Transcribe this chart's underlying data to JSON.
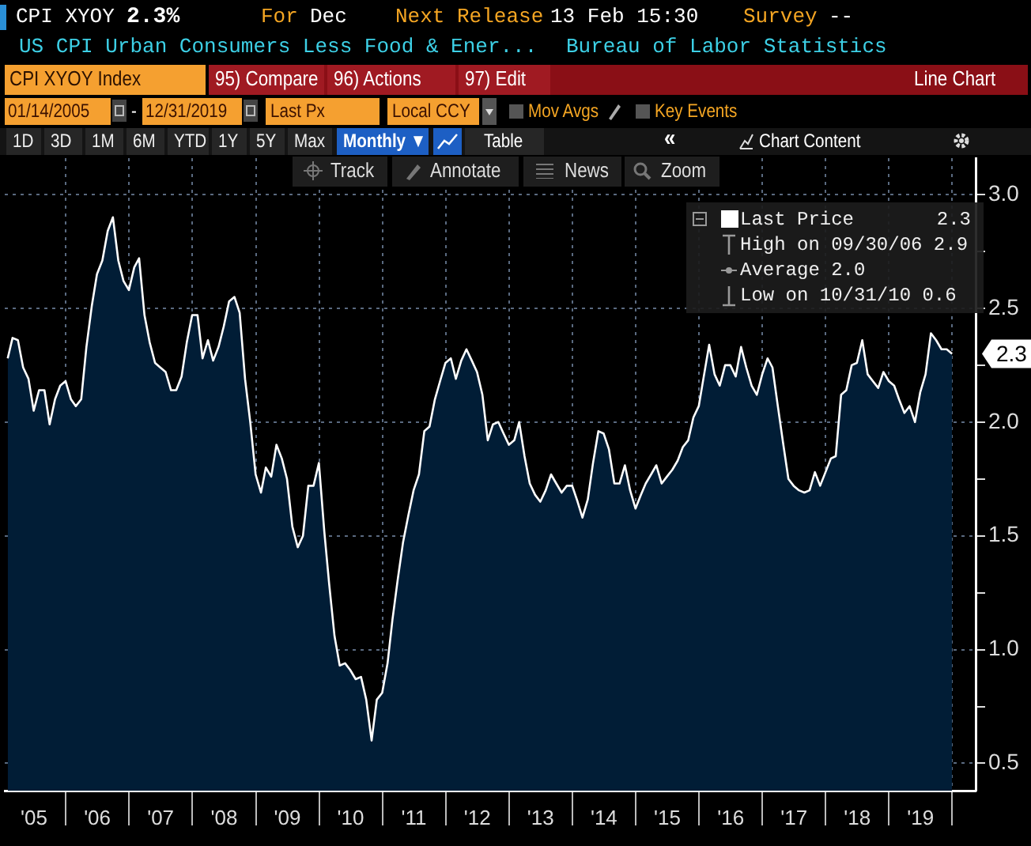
{
  "chart_data": {
    "type": "area",
    "title": "CPI XYOY",
    "subtitle": "US CPI Urban Consumers Less Food & Ener...",
    "annotations": [
      "2.3%",
      "For",
      "Dec",
      "Next Release",
      "13 Feb 15:30",
      "Survey",
      "--",
      "Bureau of Labor Statistics",
      "CPI XYOY Index",
      "95) Compare",
      "96) Actions",
      "97) Edit",
      "Line Chart",
      "01/14/2005",
      "-",
      "12/31/2019",
      "Last Px",
      "Local CCY",
      "Mov Avgs",
      "Key Events",
      "1D",
      "3D",
      "1M",
      "6M",
      "YTD",
      "1Y",
      "5Y",
      "Max",
      "Monthly ▼",
      "Table",
      "«",
      "Chart Content",
      "Track",
      "Annotate",
      "News",
      "Zoom",
      "High on 09/30/06 2.9",
      "Average 2.0",
      "Low on 10/31/10 0.6",
      {
        "text": "2.3",
        "x": "2019-12-31",
        "y": 2.3
      }
    ],
    "x": [
      "2005-01-31",
      "2005-02-28",
      "2005-03-31",
      "2005-04-30",
      "2005-05-31",
      "2005-06-30",
      "2005-07-31",
      "2005-08-31",
      "2005-09-30",
      "2005-10-31",
      "2005-11-30",
      "2005-12-31",
      "2006-01-31",
      "2006-02-28",
      "2006-03-31",
      "2006-04-30",
      "2006-05-31",
      "2006-06-30",
      "2006-07-31",
      "2006-08-31",
      "2006-09-30",
      "2006-10-31",
      "2006-11-30",
      "2006-12-31",
      "2007-01-31",
      "2007-02-28",
      "2007-03-31",
      "2007-04-30",
      "2007-05-31",
      "2007-06-30",
      "2007-07-31",
      "2007-08-31",
      "2007-09-30",
      "2007-10-31",
      "2007-11-30",
      "2007-12-31",
      "2008-01-31",
      "2008-02-29",
      "2008-03-31",
      "2008-04-30",
      "2008-05-31",
      "2008-06-30",
      "2008-07-31",
      "2008-08-31",
      "2008-09-30",
      "2008-10-31",
      "2008-11-30",
      "2008-12-31",
      "2009-01-31",
      "2009-02-28",
      "2009-03-31",
      "2009-04-30",
      "2009-05-31",
      "2009-06-30",
      "2009-07-31",
      "2009-08-31",
      "2009-09-30",
      "2009-10-31",
      "2009-11-30",
      "2009-12-31",
      "2010-01-31",
      "2010-02-28",
      "2010-03-31",
      "2010-04-30",
      "2010-05-31",
      "2010-06-30",
      "2010-07-31",
      "2010-08-31",
      "2010-09-30",
      "2010-10-31",
      "2010-11-30",
      "2010-12-31",
      "2011-01-31",
      "2011-02-28",
      "2011-03-31",
      "2011-04-30",
      "2011-05-31",
      "2011-06-30",
      "2011-07-31",
      "2011-08-31",
      "2011-09-30",
      "2011-10-31",
      "2011-11-30",
      "2011-12-31",
      "2012-01-31",
      "2012-02-29",
      "2012-03-31",
      "2012-04-30",
      "2012-05-31",
      "2012-06-30",
      "2012-07-31",
      "2012-08-31",
      "2012-09-30",
      "2012-10-31",
      "2012-11-30",
      "2012-12-31",
      "2013-01-31",
      "2013-02-28",
      "2013-03-31",
      "2013-04-30",
      "2013-05-31",
      "2013-06-30",
      "2013-07-31",
      "2013-08-31",
      "2013-09-30",
      "2013-10-31",
      "2013-11-30",
      "2013-12-31",
      "2014-01-31",
      "2014-02-28",
      "2014-03-31",
      "2014-04-30",
      "2014-05-31",
      "2014-06-30",
      "2014-07-31",
      "2014-08-31",
      "2014-09-30",
      "2014-10-31",
      "2014-11-30",
      "2014-12-31",
      "2015-01-31",
      "2015-02-28",
      "2015-03-31",
      "2015-04-30",
      "2015-05-31",
      "2015-06-30",
      "2015-07-31",
      "2015-08-31",
      "2015-09-30",
      "2015-10-31",
      "2015-11-30",
      "2015-12-31",
      "2016-01-31",
      "2016-02-29",
      "2016-03-31",
      "2016-04-30",
      "2016-05-31",
      "2016-06-30",
      "2016-07-31",
      "2016-08-31",
      "2016-09-30",
      "2016-10-31",
      "2016-11-30",
      "2016-12-31",
      "2017-01-31",
      "2017-02-28",
      "2017-03-31",
      "2017-04-30",
      "2017-05-31",
      "2017-06-30",
      "2017-07-31",
      "2017-08-31",
      "2017-09-30",
      "2017-10-31",
      "2017-11-30",
      "2017-12-31",
      "2018-01-31",
      "2018-02-28",
      "2018-03-31",
      "2018-04-30",
      "2018-05-31",
      "2018-06-30",
      "2018-07-31",
      "2018-08-31",
      "2018-09-30",
      "2018-10-31",
      "2018-11-30",
      "2018-12-31",
      "2019-01-31",
      "2019-02-28",
      "2019-03-31",
      "2019-04-30",
      "2019-05-31",
      "2019-06-30",
      "2019-07-31",
      "2019-08-31",
      "2019-09-30",
      "2019-10-31",
      "2019-11-30",
      "2019-12-31"
    ],
    "series": [
      {
        "name": "Last Price",
        "color": "#ffffff",
        "values": [
          2.28,
          2.37,
          2.36,
          2.24,
          2.19,
          2.05,
          2.14,
          2.14,
          1.99,
          2.1,
          2.16,
          2.18,
          2.1,
          2.07,
          2.1,
          2.33,
          2.51,
          2.65,
          2.71,
          2.84,
          2.9,
          2.71,
          2.62,
          2.58,
          2.68,
          2.72,
          2.47,
          2.35,
          2.26,
          2.24,
          2.22,
          2.14,
          2.14,
          2.2,
          2.35,
          2.47,
          2.47,
          2.28,
          2.36,
          2.27,
          2.33,
          2.42,
          2.53,
          2.55,
          2.48,
          2.19,
          2.0,
          1.77,
          1.69,
          1.8,
          1.76,
          1.9,
          1.84,
          1.75,
          1.54,
          1.45,
          1.5,
          1.72,
          1.72,
          1.82,
          1.52,
          1.29,
          1.06,
          0.93,
          0.94,
          0.91,
          0.87,
          0.88,
          0.78,
          0.6,
          0.78,
          0.81,
          0.94,
          1.13,
          1.31,
          1.47,
          1.59,
          1.7,
          1.77,
          1.96,
          1.98,
          2.1,
          2.18,
          2.26,
          2.28,
          2.19,
          2.27,
          2.32,
          2.27,
          2.22,
          2.12,
          1.92,
          1.99,
          2.0,
          1.95,
          1.9,
          1.92,
          2.0,
          1.85,
          1.73,
          1.68,
          1.65,
          1.7,
          1.77,
          1.73,
          1.69,
          1.72,
          1.72,
          1.65,
          1.58,
          1.66,
          1.82,
          1.96,
          1.95,
          1.88,
          1.73,
          1.73,
          1.81,
          1.7,
          1.62,
          1.68,
          1.73,
          1.77,
          1.81,
          1.73,
          1.76,
          1.79,
          1.83,
          1.89,
          1.92,
          2.02,
          2.07,
          2.21,
          2.34,
          2.21,
          2.16,
          2.25,
          2.25,
          2.2,
          2.33,
          2.24,
          2.16,
          2.12,
          2.21,
          2.28,
          2.24,
          2.07,
          1.91,
          1.75,
          1.72,
          1.7,
          1.69,
          1.7,
          1.78,
          1.72,
          1.78,
          1.84,
          1.85,
          2.12,
          2.14,
          2.25,
          2.26,
          2.36,
          2.21,
          2.18,
          2.15,
          2.22,
          2.18,
          2.16,
          2.1,
          2.04,
          2.07,
          2.0,
          2.13,
          2.21,
          2.39,
          2.36,
          2.32,
          2.32,
          2.3
        ]
      }
    ],
    "xlim": [
      "2005-01-14",
      "2020-05-15"
    ],
    "xticks": [
      {
        "value": "2005-07-02",
        "label": "'05"
      },
      {
        "value": "2006-01-01",
        "label": null
      },
      {
        "value": "2006-07-02",
        "label": "'06"
      },
      {
        "value": "2007-01-01",
        "label": null
      },
      {
        "value": "2007-07-02",
        "label": "'07"
      },
      {
        "value": "2008-01-01",
        "label": null
      },
      {
        "value": "2008-07-02",
        "label": "'08"
      },
      {
        "value": "2009-01-01",
        "label": null
      },
      {
        "value": "2009-07-02",
        "label": "'09"
      },
      {
        "value": "2010-01-01",
        "label": null
      },
      {
        "value": "2010-07-02",
        "label": "'10"
      },
      {
        "value": "2011-01-01",
        "label": null
      },
      {
        "value": "2011-07-02",
        "label": "'11"
      },
      {
        "value": "2012-01-01",
        "label": null
      },
      {
        "value": "2012-07-02",
        "label": "'12"
      },
      {
        "value": "2013-01-01",
        "label": null
      },
      {
        "value": "2013-07-02",
        "label": "'13"
      },
      {
        "value": "2014-01-01",
        "label": null
      },
      {
        "value": "2014-07-02",
        "label": "'14"
      },
      {
        "value": "2015-01-01",
        "label": null
      },
      {
        "value": "2015-07-02",
        "label": "'15"
      },
      {
        "value": "2016-01-01",
        "label": null
      },
      {
        "value": "2016-07-02",
        "label": "'16"
      },
      {
        "value": "2017-01-01",
        "label": null
      },
      {
        "value": "2017-07-02",
        "label": "'17"
      },
      {
        "value": "2018-01-01",
        "label": null
      },
      {
        "value": "2018-07-02",
        "label": "'18"
      },
      {
        "value": "2019-01-01",
        "label": null
      },
      {
        "value": "2019-07-02",
        "label": "'19"
      },
      {
        "value": "2020-01-01",
        "label": null
      }
    ],
    "ylim": [
      0.38,
      3.16
    ],
    "yticks": [
      0.5,
      {
        "value": 0.75,
        "label": null
      },
      {
        "value": 1,
        "label": "1.0"
      },
      {
        "value": 1.25,
        "label": null
      },
      1.5,
      {
        "value": 1.75,
        "label": null
      },
      {
        "value": 2,
        "label": "2.0"
      },
      {
        "value": 2.25,
        "label": null
      },
      2.5,
      {
        "value": 2.75,
        "label": null
      },
      {
        "value": 3,
        "label": "3.0"
      }
    ],
    "grid": true,
    "legend": "top right",
    "marker": "none",
    "line_style": "solid"
  }
}
